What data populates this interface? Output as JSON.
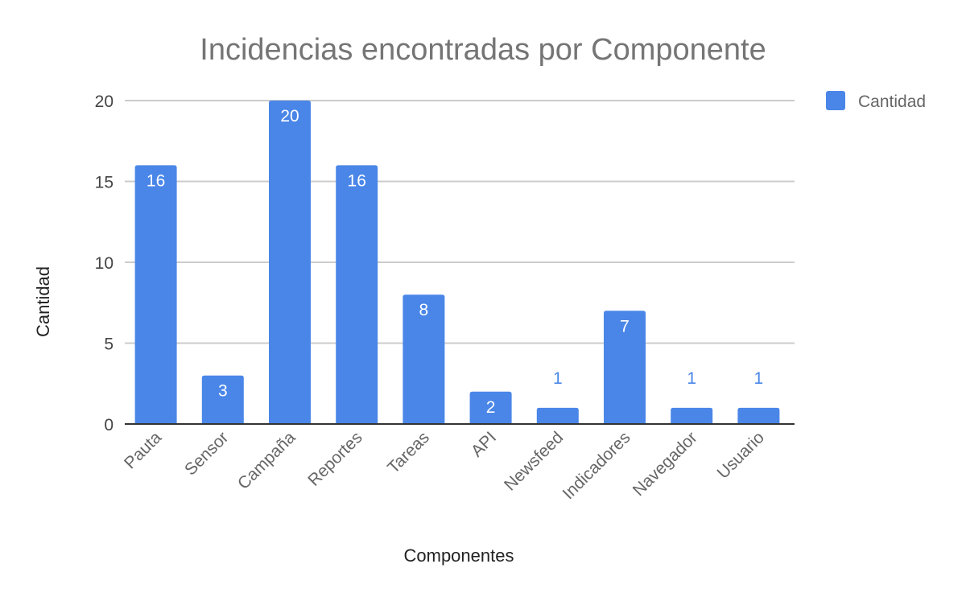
{
  "chart_data": {
    "type": "bar",
    "title": "Incidencias encontradas por Componente",
    "xlabel": "Componentes",
    "ylabel": "Cantidad",
    "categories": [
      "Pauta",
      "Sensor",
      "Campaña",
      "Reportes",
      "Tareas",
      "API",
      "Newsfeed",
      "Indicadores",
      "Navegador",
      "Usuario"
    ],
    "series": [
      {
        "name": "Cantidad",
        "values": [
          16,
          3,
          20,
          16,
          8,
          2,
          1,
          7,
          1,
          1
        ],
        "color": "#4a86e8"
      }
    ],
    "ylim": [
      0,
      20
    ],
    "yticks": [
      0,
      5,
      10,
      15,
      20
    ],
    "grid": true,
    "legend": "right-top",
    "data_labels": true
  }
}
